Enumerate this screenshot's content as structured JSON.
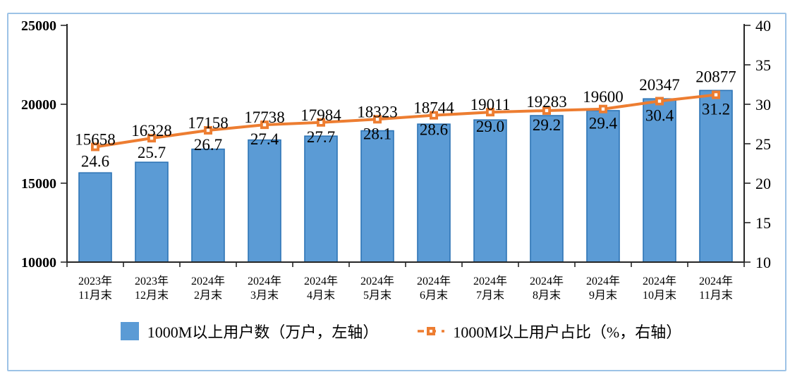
{
  "chart_data": {
    "type": "bar",
    "combo": "bar+line",
    "categories": [
      {
        "l1": "2023年",
        "l2": "11月末"
      },
      {
        "l1": "2023年",
        "l2": "12月末"
      },
      {
        "l1": "2024年",
        "l2": "2月末"
      },
      {
        "l1": "2024年",
        "l2": "3月末"
      },
      {
        "l1": "2024年",
        "l2": "4月末"
      },
      {
        "l1": "2024年",
        "l2": "5月末"
      },
      {
        "l1": "2024年",
        "l2": "6月末"
      },
      {
        "l1": "2024年",
        "l2": "7月末"
      },
      {
        "l1": "2024年",
        "l2": "8月末"
      },
      {
        "l1": "2024年",
        "l2": "9月末"
      },
      {
        "l1": "2024年",
        "l2": "10月末"
      },
      {
        "l1": "2024年",
        "l2": "11月末"
      }
    ],
    "series": [
      {
        "name": "1000M以上用户数（万户，左轴）",
        "type": "bar",
        "axis": "left",
        "values": [
          15658,
          16328,
          17158,
          17738,
          17984,
          18323,
          18744,
          19011,
          19283,
          19600,
          20347,
          20877
        ]
      },
      {
        "name": "1000M以上用户占比（%，右轴）",
        "type": "line",
        "axis": "right",
        "values": [
          24.6,
          25.7,
          26.7,
          27.4,
          27.7,
          28.1,
          28.6,
          29.0,
          29.2,
          29.4,
          30.4,
          31.2
        ]
      }
    ],
    "left_axis": {
      "min": 10000,
      "max": 25000,
      "ticks": [
        10000,
        15000,
        20000,
        25000
      ]
    },
    "right_axis": {
      "min": 10,
      "max": 40,
      "ticks": [
        10,
        15,
        20,
        25,
        30,
        35,
        40
      ]
    },
    "legend_position": "bottom",
    "grid": false,
    "title": ""
  },
  "colors": {
    "bar_fill": "#5B9BD5",
    "bar_border": "#2E75B6",
    "line": "#ED7D31",
    "marker_center": "#FFFFFF",
    "axis": "#262626",
    "text": "#000000",
    "frame_border": "#9DC3E6"
  }
}
